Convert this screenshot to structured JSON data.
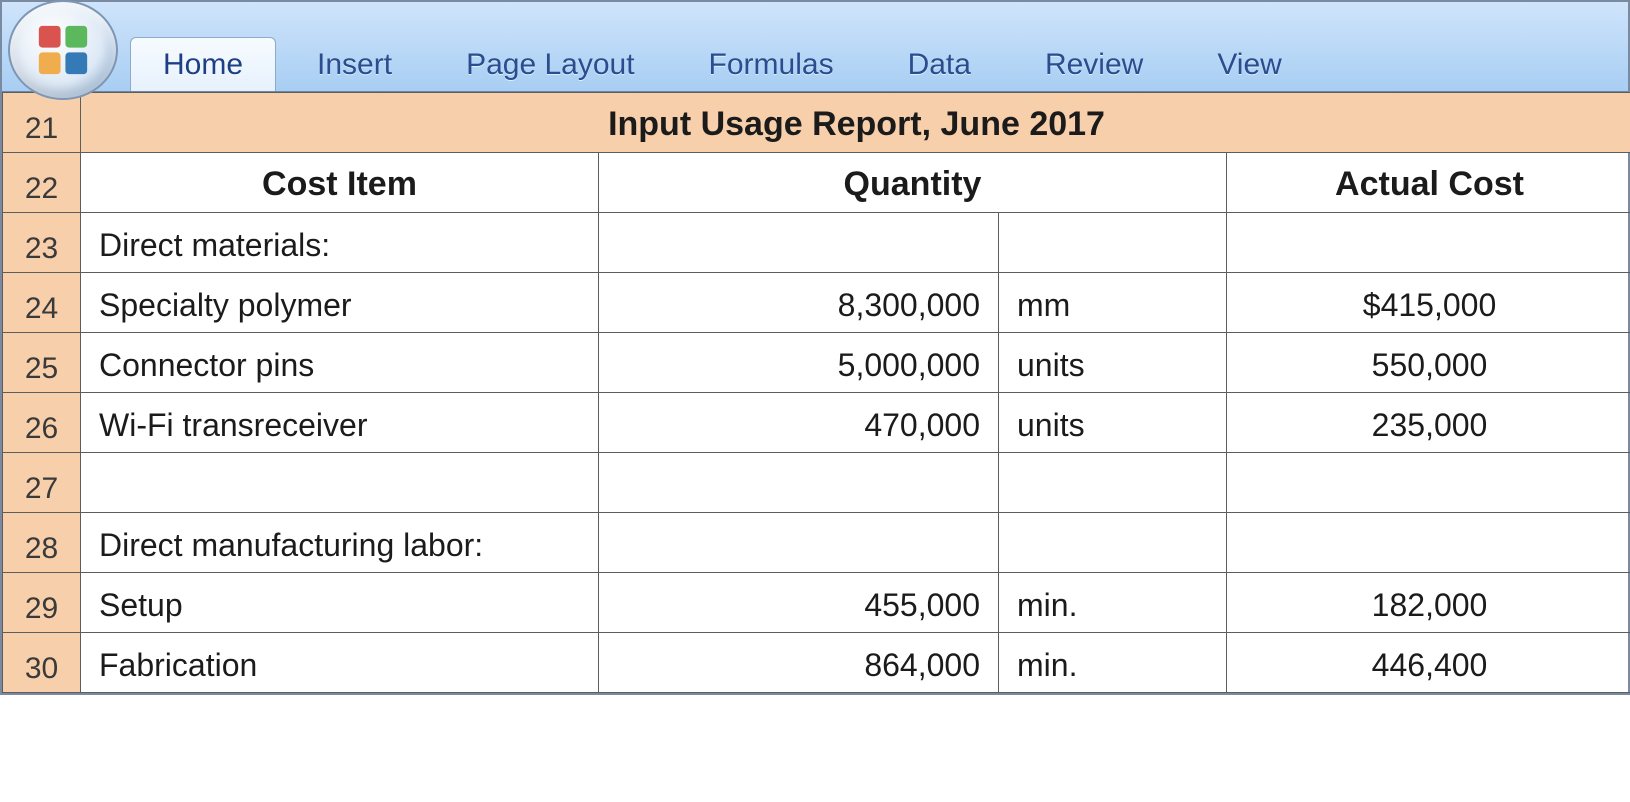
{
  "ribbon": {
    "tabs": [
      {
        "label": "Home",
        "active": true
      },
      {
        "label": "Insert",
        "active": false
      },
      {
        "label": "Page Layout",
        "active": false
      },
      {
        "label": "Formulas",
        "active": false
      },
      {
        "label": "Data",
        "active": false
      },
      {
        "label": "Review",
        "active": false
      },
      {
        "label": "View",
        "active": false
      }
    ],
    "office_logo_colors": {
      "tl": "#d9534f",
      "tr": "#5cb85c",
      "bl": "#f0ad4e",
      "br": "#337ab7"
    }
  },
  "sheet": {
    "colors": {
      "row_header_bg": "#f7cfab",
      "title_bg": "#f7cfab",
      "grid_border": "#5d5d5d",
      "ribbon_top": "#cfe4fb",
      "ribbon_bottom": "#a8cef3",
      "tab_text": "#2a4d8f"
    },
    "row_start": 21,
    "title": "Input Usage Report, June 2017",
    "headers": {
      "c1": "Cost Item",
      "c2": "Quantity",
      "c3": "Actual Cost"
    },
    "rows": [
      {
        "num": 23,
        "item": "Direct materials:",
        "indent": 1,
        "qty": "",
        "unit": "",
        "cost": ""
      },
      {
        "num": 24,
        "item": "Specialty polymer",
        "indent": 2,
        "qty": "8,300,000",
        "unit": "mm",
        "cost": "$415,000"
      },
      {
        "num": 25,
        "item": "Connector pins",
        "indent": 2,
        "qty": "5,000,000",
        "unit": "units",
        "cost": "550,000"
      },
      {
        "num": 26,
        "item": "Wi-Fi transreceiver",
        "indent": 2,
        "qty": "470,000",
        "unit": "units",
        "cost": "235,000"
      },
      {
        "num": 27,
        "item": "",
        "indent": 0,
        "qty": "",
        "unit": "",
        "cost": ""
      },
      {
        "num": 28,
        "item": "Direct manufacturing labor:",
        "indent": 1,
        "qty": "",
        "unit": "",
        "cost": ""
      },
      {
        "num": 29,
        "item": "Setup",
        "indent": 2,
        "qty": "455,000",
        "unit": "min.",
        "cost": "182,000"
      },
      {
        "num": 30,
        "item": "Fabrication",
        "indent": 2,
        "qty": "864,000",
        "unit": "min.",
        "cost": "446,400"
      }
    ]
  }
}
